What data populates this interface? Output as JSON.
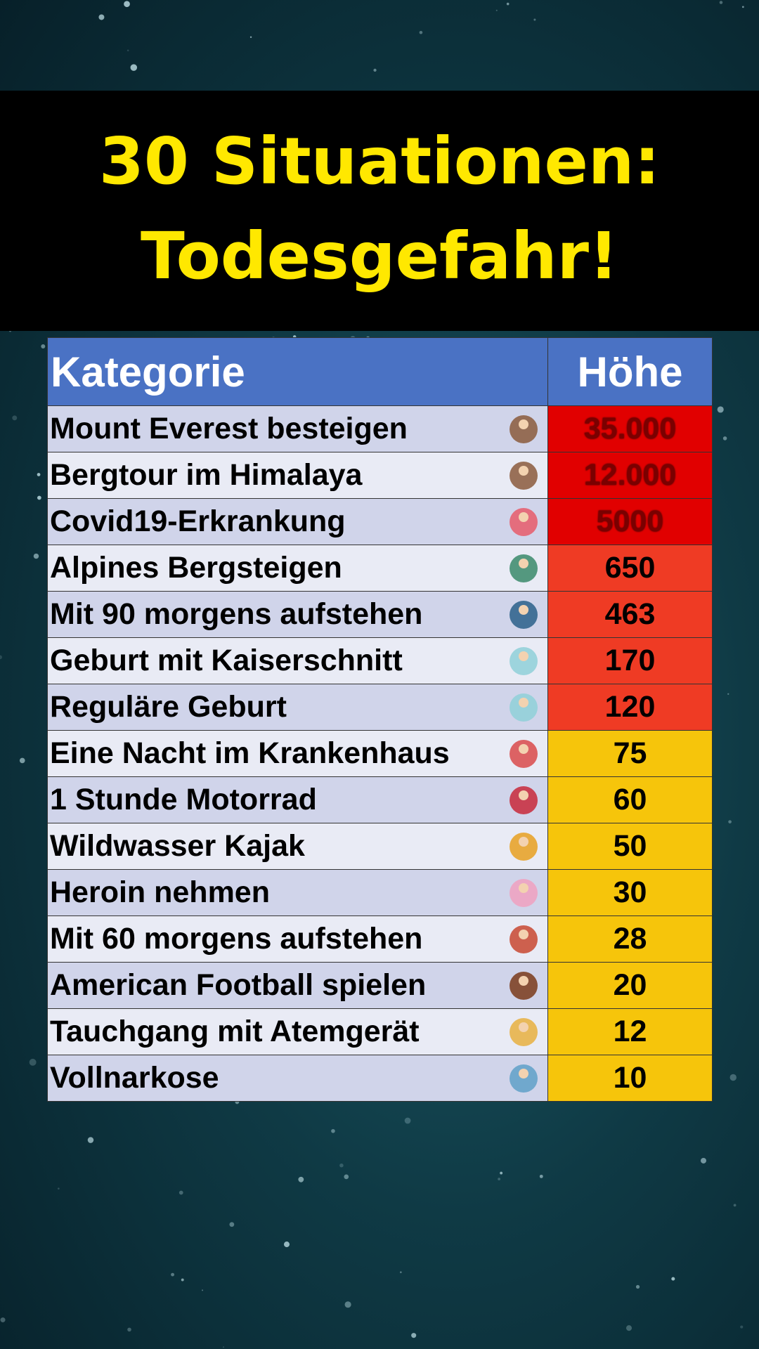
{
  "header": {
    "title_lines": [
      "30 Situationen:",
      "Todesgefahr!"
    ]
  },
  "table": {
    "columns": [
      "Kategorie",
      "Höhe"
    ],
    "rows": [
      {
        "label": "Mount Everest besteigen",
        "value": "35.000"
      },
      {
        "label": "Bergtour im Himalaya",
        "value": "12.000"
      },
      {
        "label": "Covid19-Erkrankung",
        "value": "5000"
      },
      {
        "label": "Alpines Bergsteigen",
        "value": "650"
      },
      {
        "label": "Mit 90 morgens aufstehen",
        "value": "463"
      },
      {
        "label": "Geburt mit Kaiserschnitt",
        "value": "170"
      },
      {
        "label": "Reguläre Geburt",
        "value": "120"
      },
      {
        "label": "Eine Nacht im Krankenhaus",
        "value": "75"
      },
      {
        "label": "1 Stunde Motorrad",
        "value": "60"
      },
      {
        "label": "Wildwasser Kajak",
        "value": "50"
      },
      {
        "label": "Heroin nehmen",
        "value": "30"
      },
      {
        "label": "Mit 60 morgens aufstehen",
        "value": "28"
      },
      {
        "label": "American Football spielen",
        "value": "20"
      },
      {
        "label": "Tauchgang mit Atemgerät",
        "value": "12"
      },
      {
        "label": "Vollnarkose",
        "value": "10"
      }
    ]
  }
}
